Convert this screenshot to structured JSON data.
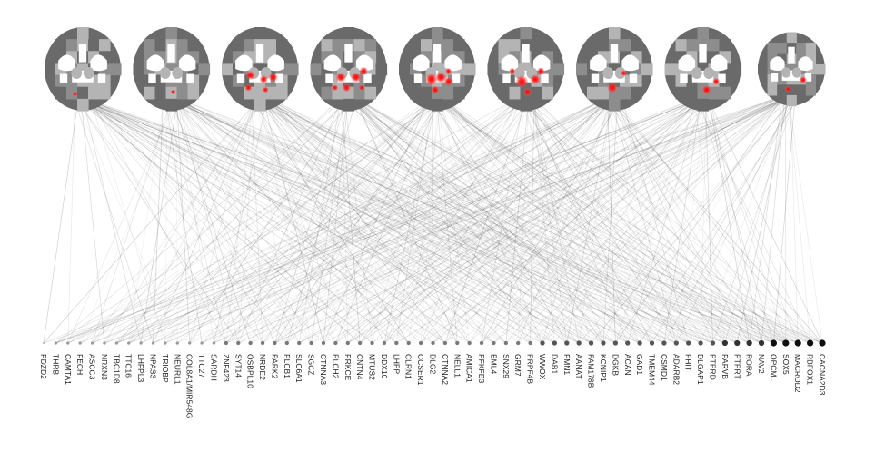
{
  "figure": {
    "colors": {
      "background": "#ffffff",
      "brain_dark": "#6a6a6a",
      "brain_mid": "#8d8d8d",
      "brain_light": "#b4b4b4",
      "highlight": "#ff1a1a",
      "edge": "#555555",
      "node": "#111111"
    },
    "slice_count": 9,
    "slices": [
      {
        "index": 1,
        "hotspots": [
          [
            -0.2,
            0.6,
            0.5
          ]
        ]
      },
      {
        "index": 2,
        "hotspots": [
          [
            0.05,
            0.55,
            0.5
          ]
        ]
      },
      {
        "index": 3,
        "hotspots": [
          [
            -0.25,
            0.15,
            0.9
          ],
          [
            0.1,
            0.25,
            0.8
          ],
          [
            0.35,
            0.2,
            0.9
          ],
          [
            -0.3,
            0.45,
            0.7
          ],
          [
            0.15,
            0.5,
            0.6
          ]
        ]
      },
      {
        "index": 4,
        "hotspots": [
          [
            -0.2,
            0.2,
            1.0
          ],
          [
            0.2,
            0.2,
            1.0
          ],
          [
            0.4,
            0.05,
            0.8
          ],
          [
            -0.05,
            0.45,
            0.8
          ],
          [
            -0.35,
            0.45,
            0.6
          ],
          [
            0.35,
            0.45,
            0.6
          ]
        ]
      },
      {
        "index": 5,
        "hotspots": [
          [
            -0.15,
            0.25,
            1.2
          ],
          [
            0.1,
            0.2,
            1.1
          ],
          [
            0.3,
            0.3,
            0.9
          ],
          [
            -0.05,
            0.5,
            0.8
          ],
          [
            0.3,
            0.05,
            0.6
          ]
        ]
      },
      {
        "index": 6,
        "hotspots": [
          [
            -0.1,
            0.3,
            1.2
          ],
          [
            0.25,
            0.25,
            1.0
          ],
          [
            0.4,
            0.05,
            0.7
          ],
          [
            -0.35,
            0.05,
            0.6
          ],
          [
            0.05,
            0.55,
            0.8
          ]
        ]
      },
      {
        "index": 7,
        "hotspots": [
          [
            -0.05,
            0.45,
            1.0
          ],
          [
            0.25,
            0.1,
            0.6
          ]
        ]
      },
      {
        "index": 8,
        "hotspots": [
          [
            0.1,
            0.5,
            0.9
          ],
          [
            0.35,
            0.3,
            0.7
          ]
        ]
      },
      {
        "index": 9,
        "hotspots": [
          [
            -0.1,
            0.55,
            0.6
          ],
          [
            0.35,
            0.3,
            0.7
          ]
        ]
      }
    ],
    "genes": [
      {
        "name": "PDZD2",
        "degree": 4
      },
      {
        "name": "THRB",
        "degree": 5
      },
      {
        "name": "CAMTA1",
        "degree": 5
      },
      {
        "name": "FECH",
        "degree": 5
      },
      {
        "name": "ASCC3",
        "degree": 5
      },
      {
        "name": "NRXN3",
        "degree": 5
      },
      {
        "name": "TBC1D8",
        "degree": 5
      },
      {
        "name": "TTC16",
        "degree": 5
      },
      {
        "name": "LHFPL3",
        "degree": 5
      },
      {
        "name": "NPAS3",
        "degree": 5
      },
      {
        "name": "TRIOBP",
        "degree": 5
      },
      {
        "name": "NEURL1",
        "degree": 5
      },
      {
        "name": "COL8A1/MIR548G",
        "degree": 5
      },
      {
        "name": "TTC27",
        "degree": 5
      },
      {
        "name": "SARDH",
        "degree": 5
      },
      {
        "name": "ZNF423",
        "degree": 6
      },
      {
        "name": "SYT14",
        "degree": 6
      },
      {
        "name": "OSBPL10",
        "degree": 6
      },
      {
        "name": "NRDE2",
        "degree": 6
      },
      {
        "name": "PARK2",
        "degree": 6
      },
      {
        "name": "PLCB1",
        "degree": 6
      },
      {
        "name": "SLC6A1",
        "degree": 6
      },
      {
        "name": "SGCZ",
        "degree": 6
      },
      {
        "name": "CTNNA3",
        "degree": 6
      },
      {
        "name": "PLCH2",
        "degree": 6
      },
      {
        "name": "PRKCE",
        "degree": 6
      },
      {
        "name": "CNTN4",
        "degree": 6
      },
      {
        "name": "MTUS2",
        "degree": 6
      },
      {
        "name": "DDX10",
        "degree": 6
      },
      {
        "name": "LHPP",
        "degree": 6
      },
      {
        "name": "CLRN1",
        "degree": 6
      },
      {
        "name": "CCSER1",
        "degree": 6
      },
      {
        "name": "DLG2",
        "degree": 6
      },
      {
        "name": "CTNNA2",
        "degree": 6
      },
      {
        "name": "NELL1",
        "degree": 6
      },
      {
        "name": "AMICA1",
        "degree": 6
      },
      {
        "name": "PFKFB3",
        "degree": 6
      },
      {
        "name": "EML4",
        "degree": 6
      },
      {
        "name": "SNX29",
        "degree": 6
      },
      {
        "name": "GRM7",
        "degree": 6
      },
      {
        "name": "PRPF4B",
        "degree": 6
      },
      {
        "name": "WWOX",
        "degree": 7
      },
      {
        "name": "DAB1",
        "degree": 7
      },
      {
        "name": "FMN1",
        "degree": 7
      },
      {
        "name": "AANAT",
        "degree": 7
      },
      {
        "name": "FAM178B",
        "degree": 7
      },
      {
        "name": "KCNIP1",
        "degree": 7
      },
      {
        "name": "DGKB",
        "degree": 7
      },
      {
        "name": "ACAN",
        "degree": 7
      },
      {
        "name": "GAD1",
        "degree": 7
      },
      {
        "name": "TMEM44",
        "degree": 7
      },
      {
        "name": "CSMD1",
        "degree": 7
      },
      {
        "name": "ADARB2",
        "degree": 7
      },
      {
        "name": "FHIT",
        "degree": 7
      },
      {
        "name": "DLGAP1",
        "degree": 7
      },
      {
        "name": "PTPRD",
        "degree": 7
      },
      {
        "name": "PARVB",
        "degree": 8
      },
      {
        "name": "PTPRT",
        "degree": 8
      },
      {
        "name": "RORA",
        "degree": 8
      },
      {
        "name": "NAV2",
        "degree": 8
      },
      {
        "name": "OPCML",
        "degree": 9
      },
      {
        "name": "SOX5",
        "degree": 9
      },
      {
        "name": "MACROD2",
        "degree": 9
      },
      {
        "name": "RBFOX1",
        "degree": 9
      },
      {
        "name": "CACNA2D3",
        "degree": 9
      }
    ]
  }
}
